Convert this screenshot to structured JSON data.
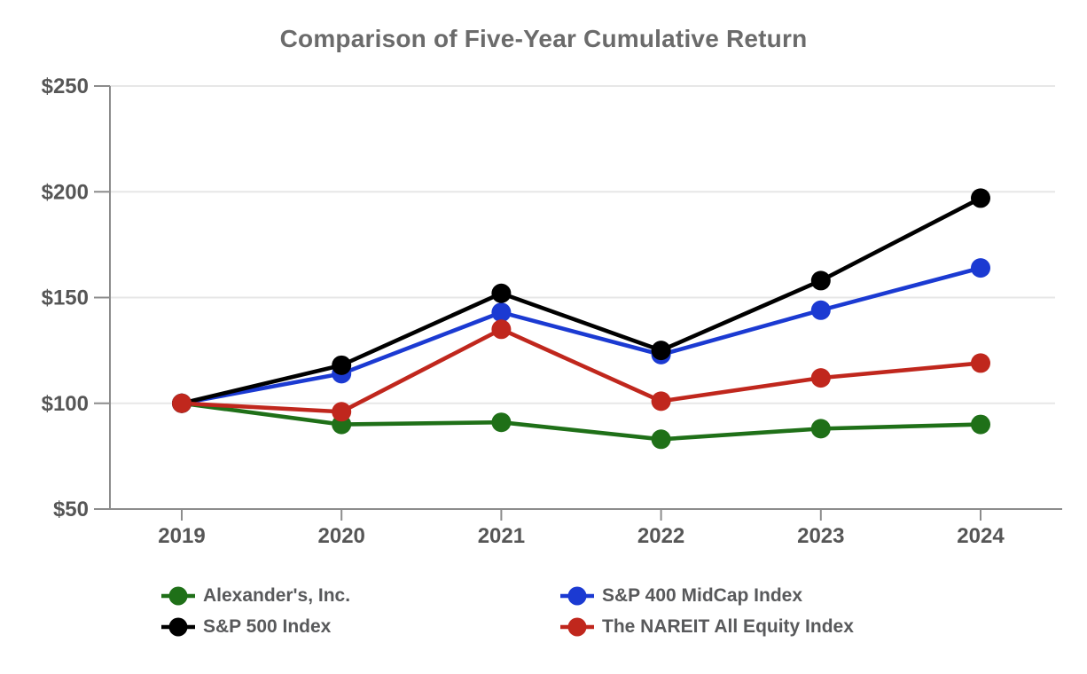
{
  "title": "Comparison of Five-Year Cumulative Return",
  "chart_data": {
    "type": "line",
    "categories": [
      "2019",
      "2020",
      "2021",
      "2022",
      "2023",
      "2024"
    ],
    "series": [
      {
        "name": "Alexander's, Inc.",
        "color": "#1f7018",
        "values": [
          100,
          90,
          91,
          83,
          88,
          90
        ]
      },
      {
        "name": "S&P 400 MidCap Index",
        "color": "#1b3ad2",
        "values": [
          100,
          114,
          143,
          123,
          144,
          164
        ]
      },
      {
        "name": "S&P 500 Index",
        "color": "#000000",
        "values": [
          100,
          118,
          152,
          125,
          158,
          197
        ]
      },
      {
        "name": "The NAREIT All Equity Index",
        "color": "#c0271d",
        "values": [
          100,
          96,
          135,
          101,
          112,
          119
        ]
      }
    ],
    "title": "Comparison of Five-Year Cumulative Return",
    "xlabel": "",
    "ylabel": "",
    "ylim": [
      50,
      250
    ],
    "ytick_step": 50,
    "ytick_labels": [
      "$50",
      "$100",
      "$150",
      "$200",
      "$250"
    ],
    "currency_prefix": "$",
    "grid": true,
    "legend_position": "bottom"
  },
  "legend": {
    "columns": [
      {
        "items": [
          {
            "label": "Alexander's, Inc.",
            "color": "#1f7018"
          },
          {
            "label": "S&P 500 Index",
            "color": "#000000"
          }
        ]
      },
      {
        "items": [
          {
            "label": "S&P 400 MidCap Index",
            "color": "#1b3ad2"
          },
          {
            "label": "The NAREIT All Equity Index",
            "color": "#c0271d"
          }
        ]
      }
    ]
  },
  "style_colors": {
    "title_text": "#6b6b6b",
    "axis_line": "#8c8c8c",
    "tick_label": "#565656",
    "gridline": "#e7e7e7",
    "legend_text": "#58595b"
  }
}
